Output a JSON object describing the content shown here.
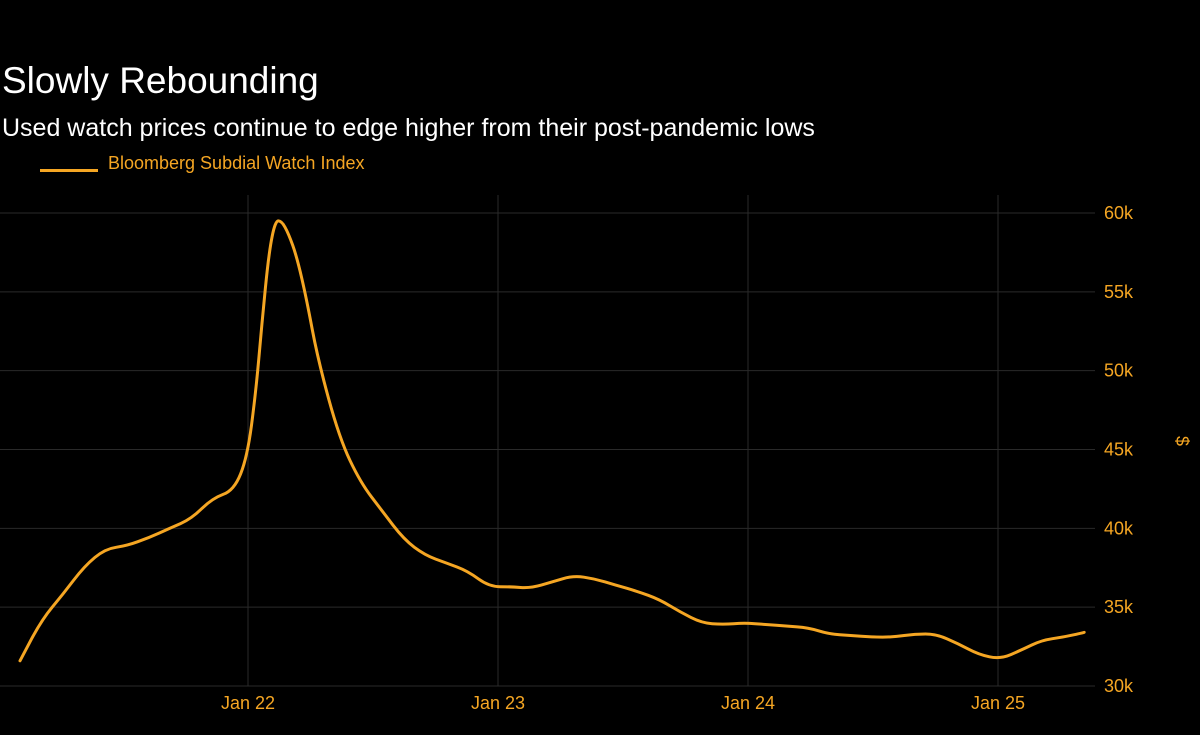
{
  "header": {
    "title": "Slowly Rebounding",
    "subtitle": "Used watch prices continue to edge higher from their post-pandemic lows"
  },
  "colors": {
    "background": "#000000",
    "series": "#f5a623",
    "grid": "#2a2a2a",
    "text": "#ffffff"
  },
  "chart_data": {
    "type": "line",
    "title": "Slowly Rebounding",
    "subtitle": "Used watch prices continue to edge higher from their post-pandemic lows",
    "xlabel": "",
    "ylabel": "$",
    "x_ticks": [
      "Jan 22",
      "Jan 23",
      "Jan 24",
      "Jan 25"
    ],
    "y_ticks": [
      "60k",
      "55k",
      "50k",
      "45k",
      "40k",
      "35k",
      "30k"
    ],
    "ylim": [
      30000,
      60000
    ],
    "xlim": [
      "2021-03-01",
      "2025-05-15"
    ],
    "grid": true,
    "y_axis_position": "right",
    "legend": {
      "placement": "top-left",
      "entries": [
        "Bloomberg Subdial Watch Index"
      ]
    },
    "series": [
      {
        "name": "Bloomberg Subdial Watch Index",
        "points": [
          [
            "2021-03-01",
            31600
          ],
          [
            "2021-04-01",
            34200
          ],
          [
            "2021-05-01",
            35800
          ],
          [
            "2021-06-01",
            37600
          ],
          [
            "2021-07-01",
            38700
          ],
          [
            "2021-08-01",
            38900
          ],
          [
            "2021-09-01",
            39400
          ],
          [
            "2021-10-01",
            40000
          ],
          [
            "2021-11-01",
            40600
          ],
          [
            "2021-12-01",
            41900
          ],
          [
            "2022-01-01",
            42400
          ],
          [
            "2022-01-20",
            44500
          ],
          [
            "2022-02-01",
            48500
          ],
          [
            "2022-02-10",
            53000
          ],
          [
            "2022-02-20",
            57500
          ],
          [
            "2022-03-01",
            59500
          ],
          [
            "2022-03-10",
            59500
          ],
          [
            "2022-03-20",
            58700
          ],
          [
            "2022-04-01",
            57200
          ],
          [
            "2022-04-15",
            54500
          ],
          [
            "2022-05-01",
            50700
          ],
          [
            "2022-06-01",
            45700
          ],
          [
            "2022-07-01",
            42900
          ],
          [
            "2022-08-01",
            41100
          ],
          [
            "2022-09-01",
            39300
          ],
          [
            "2022-10-01",
            38300
          ],
          [
            "2022-11-01",
            37800
          ],
          [
            "2022-12-01",
            37300
          ],
          [
            "2023-01-01",
            36300
          ],
          [
            "2023-02-01",
            36300
          ],
          [
            "2023-03-01",
            36200
          ],
          [
            "2023-04-01",
            36600
          ],
          [
            "2023-05-01",
            37000
          ],
          [
            "2023-06-01",
            36800
          ],
          [
            "2023-07-01",
            36400
          ],
          [
            "2023-08-01",
            36000
          ],
          [
            "2023-09-01",
            35500
          ],
          [
            "2023-10-01",
            34700
          ],
          [
            "2023-11-01",
            34000
          ],
          [
            "2023-12-01",
            33900
          ],
          [
            "2024-01-01",
            34000
          ],
          [
            "2024-02-01",
            33900
          ],
          [
            "2024-03-01",
            33800
          ],
          [
            "2024-04-01",
            33700
          ],
          [
            "2024-05-01",
            33300
          ],
          [
            "2024-06-01",
            33200
          ],
          [
            "2024-07-01",
            33100
          ],
          [
            "2024-08-01",
            33100
          ],
          [
            "2024-09-01",
            33300
          ],
          [
            "2024-10-01",
            33300
          ],
          [
            "2024-11-01",
            32700
          ],
          [
            "2024-12-01",
            32000
          ],
          [
            "2025-01-01",
            31700
          ],
          [
            "2025-02-01",
            32300
          ],
          [
            "2025-03-01",
            32900
          ],
          [
            "2025-04-01",
            33100
          ],
          [
            "2025-05-01",
            33400
          ]
        ]
      }
    ]
  }
}
